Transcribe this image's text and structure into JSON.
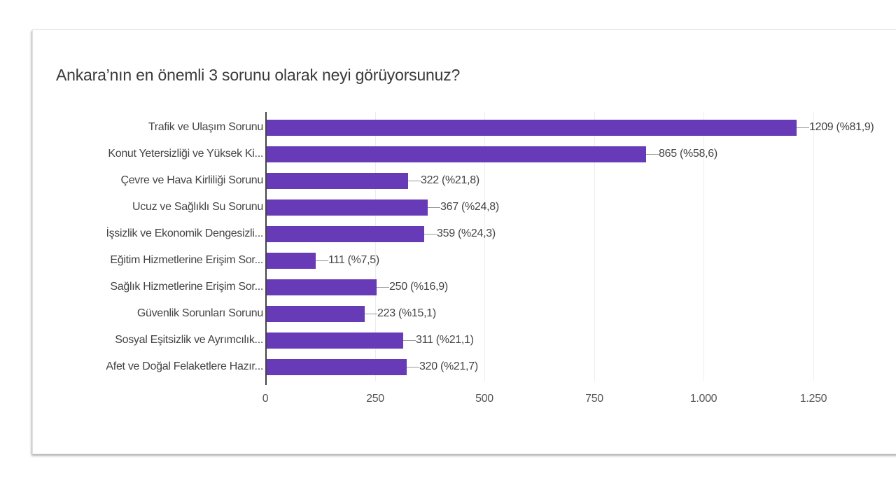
{
  "question": "Ankara’nın en önemli 3 sorunu olarak neyi görüyorsunuz?",
  "colors": {
    "bar": "#673ab7",
    "text": "#444444",
    "grid": "#ececec"
  },
  "chart_data": {
    "type": "bar",
    "orientation": "horizontal",
    "title": "Ankara’nın en önemli 3 sorunu olarak neyi görüyorsunuz?",
    "xlabel": "",
    "ylabel": "",
    "xlim": [
      0,
      1250
    ],
    "grid": true,
    "legend": null,
    "categories": [
      "Trafik ve Ulaşım Sorunu",
      "Konut Yetersizliği ve Yüksek Ki...",
      "Çevre ve Hava Kirliliği Sorunu",
      "Ucuz ve Sağlıklı Su Sorunu",
      "İşsizlik ve Ekonomik Dengesizli...",
      "Eğitim Hizmetlerine Erişim Sor...",
      "Sağlık Hizmetlerine Erişim Sor...",
      "Güvenlik Sorunları Sorunu",
      "Sosyal Eşitsizlik ve Ayrımcılık...",
      "Afet ve Doğal Felaketlere Hazır..."
    ],
    "values": [
      1209,
      865,
      322,
      367,
      359,
      111,
      250,
      223,
      311,
      320
    ],
    "percentages": [
      "81,9",
      "58,6",
      "21,8",
      "24,8",
      "24,3",
      "7,5",
      "16,9",
      "15,1",
      "21,1",
      "21,7"
    ],
    "data_labels": [
      "1209 (%81,9)",
      "865 (%58,6)",
      "322 (%21,8)",
      "367 (%24,8)",
      "359 (%24,3)",
      "111 (%7,5)",
      "250 (%16,9)",
      "223 (%15,1)",
      "311 (%21,1)",
      "320 (%21,7)"
    ],
    "x_ticks": [
      "0",
      "250",
      "500",
      "750",
      "1.000",
      "1.250"
    ],
    "x_tick_values": [
      0,
      250,
      500,
      750,
      1000,
      1250
    ]
  }
}
